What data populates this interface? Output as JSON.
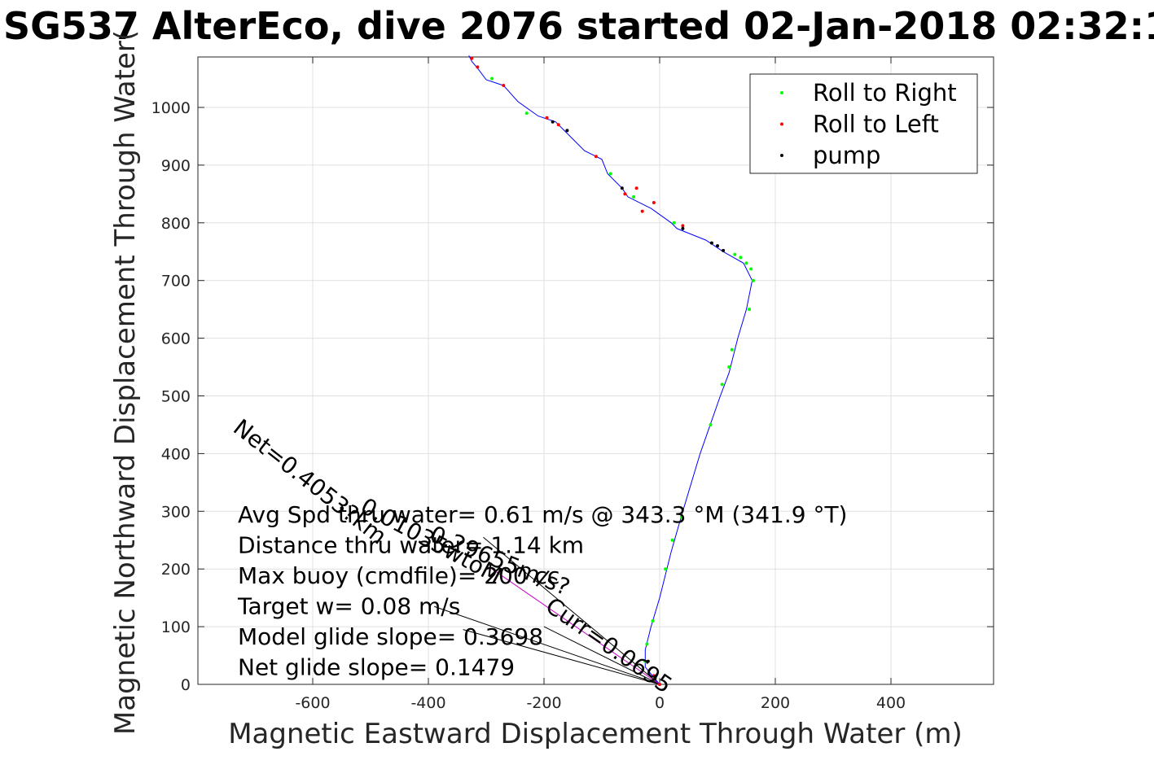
{
  "chart_data": {
    "type": "line",
    "title": "SG537 AlterEco, dive 2076 started 02-Jan-2018 02:32:1",
    "xlabel": "Magnetic Eastward Displacement Through Water (m)",
    "ylabel": "Magnetic Northward Displacement Through Water(",
    "xlim": [
      -800,
      580
    ],
    "ylim": [
      0,
      1090
    ],
    "xticks": [
      -600,
      -400,
      -200,
      0,
      200,
      400
    ],
    "yticks": [
      0,
      100,
      200,
      300,
      400,
      500,
      600,
      700,
      800,
      900,
      1000
    ],
    "grid": true,
    "legend_position": "top-right",
    "series": [
      {
        "name": "track",
        "color": "#0000ff",
        "points": [
          [
            0,
            0
          ],
          [
            -25,
            30
          ],
          [
            -25,
            60
          ],
          [
            -15,
            100
          ],
          [
            0,
            150
          ],
          [
            20,
            230
          ],
          [
            40,
            300
          ],
          [
            70,
            400
          ],
          [
            105,
            500
          ],
          [
            120,
            540
          ],
          [
            135,
            600
          ],
          [
            150,
            650
          ],
          [
            160,
            700
          ],
          [
            145,
            730
          ],
          [
            110,
            750
          ],
          [
            80,
            770
          ],
          [
            55,
            780
          ],
          [
            30,
            790
          ],
          [
            20,
            800
          ],
          [
            -15,
            825
          ],
          [
            -55,
            845
          ],
          [
            -65,
            860
          ],
          [
            -90,
            885
          ],
          [
            -100,
            910
          ],
          [
            -130,
            925
          ],
          [
            -160,
            955
          ],
          [
            -180,
            975
          ],
          [
            -210,
            985
          ],
          [
            -245,
            1010
          ],
          [
            -270,
            1038
          ],
          [
            -300,
            1048
          ],
          [
            -315,
            1068
          ],
          [
            -325,
            1080
          ],
          [
            -330,
            1090
          ]
        ]
      },
      {
        "name": "Roll to Right",
        "color": "#00ff00",
        "points": [
          [
            -25,
            40
          ],
          [
            -22,
            70
          ],
          [
            -12,
            110
          ],
          [
            10,
            200
          ],
          [
            22,
            250
          ],
          [
            38,
            290
          ],
          [
            88,
            450
          ],
          [
            108,
            520
          ],
          [
            120,
            550
          ],
          [
            125,
            580
          ],
          [
            155,
            650
          ],
          [
            162,
            700
          ],
          [
            158,
            720
          ],
          [
            150,
            730
          ],
          [
            140,
            740
          ],
          [
            130,
            745
          ],
          [
            25,
            800
          ],
          [
            -45,
            845
          ],
          [
            -85,
            885
          ],
          [
            -230,
            990
          ],
          [
            -290,
            1050
          ]
        ]
      },
      {
        "name": "Roll to Left",
        "color": "#ff0000",
        "points": [
          [
            0,
            0
          ],
          [
            -10,
            15
          ],
          [
            -40,
            860
          ],
          [
            -60,
            850
          ],
          [
            -30,
            820
          ],
          [
            -10,
            835
          ],
          [
            40,
            795
          ],
          [
            -110,
            915
          ],
          [
            -175,
            970
          ],
          [
            -195,
            982
          ],
          [
            -270,
            1038
          ],
          [
            -315,
            1070
          ],
          [
            -325,
            1085
          ]
        ]
      },
      {
        "name": "pump",
        "color": "#000000",
        "points": [
          [
            -20,
            40
          ],
          [
            -8,
            10
          ],
          [
            90,
            765
          ],
          [
            100,
            760
          ],
          [
            110,
            752
          ],
          [
            -65,
            860
          ],
          [
            -185,
            975
          ],
          [
            -160,
            960
          ],
          [
            40,
            790
          ]
        ]
      }
    ],
    "vectors": [
      {
        "from": [
          0,
          0
        ],
        "to": [
          -305,
          255
        ]
      },
      {
        "from": [
          0,
          0
        ],
        "to": [
          -390,
          135
        ]
      },
      {
        "from": [
          0,
          0
        ],
        "to": [
          -340,
          95
        ]
      },
      {
        "from": [
          0,
          0
        ],
        "to": [
          -200,
          100
        ]
      }
    ],
    "vector_labels": [
      {
        "text": "Net=0.4053?km",
        "x": -740,
        "y": 440,
        "angle": 38
      },
      {
        "text": "0.01035wtoM",
        "x": -520,
        "y": 300,
        "angle": 28
      },
      {
        "text": "0.29655m/s?",
        "x": -400,
        "y": 250,
        "angle": 22
      },
      {
        "text": "Curr=0.0695",
        "x": -200,
        "y": 130,
        "angle": 35
      }
    ],
    "legend": [
      "Roll to Right",
      "Roll to Left",
      "pump"
    ],
    "annotations": [
      "Avg Spd thru water=  0.61 m/s @ 343.3 °M (341.9 °T)",
      "Distance thru water=  1.14 km",
      "Max buoy (cmdfile)= 200 cc",
      "Target w= 0.08 m/s",
      "Model glide slope= 0.3698",
      "Net glide slope= 0.1479"
    ]
  }
}
